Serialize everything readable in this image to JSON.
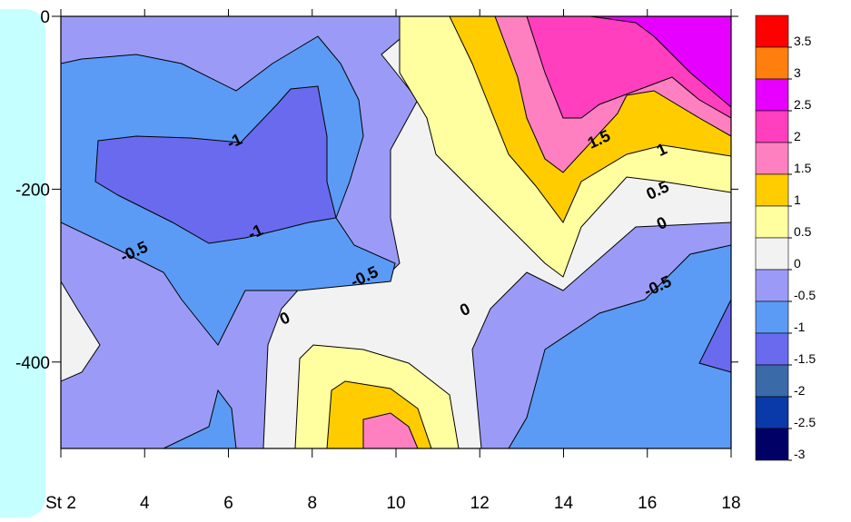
{
  "chart_data": {
    "type": "heatmap",
    "title": "",
    "xlabel": "",
    "ylabel": "",
    "x_ticks": [
      "St 2",
      "4",
      "6",
      "8",
      "10",
      "12",
      "14",
      "16",
      "18"
    ],
    "y_ticks": [
      "0",
      "-200",
      "-400"
    ],
    "xlim": [
      2,
      18
    ],
    "ylim": [
      -500,
      0
    ],
    "colorbar": {
      "levels": [
        3.5,
        3,
        2.5,
        2,
        1.5,
        1,
        0.5,
        0,
        -0.5,
        -1,
        -1.5,
        -2,
        -2.5,
        -3
      ],
      "labels": [
        "3.5",
        "3",
        "2.5",
        "2",
        "1.5",
        "1",
        "0.5",
        "0",
        "-0.5",
        "-1",
        "-1.5",
        "-2",
        "-2.5",
        "-3"
      ],
      "colors": [
        "#ff0000",
        "#ff7f0e",
        "#e600ff",
        "#ff3fbe",
        "#ff80c0",
        "#ffcc00",
        "#ffffa0",
        "#f2f2f2",
        "#9b9bf7",
        "#5b9bf5",
        "#6a6aef",
        "#3a6aa8",
        "#0a3aaa",
        "#000066"
      ]
    },
    "contour_labels": [
      {
        "text": "-1",
        "x": 6.2,
        "y": -150
      },
      {
        "text": "-1",
        "x": 6.7,
        "y": -255
      },
      {
        "text": "-0.5",
        "x": 3.8,
        "y": -278
      },
      {
        "text": "-0.5",
        "x": 9.3,
        "y": -307
      },
      {
        "text": "0",
        "x": 7.4,
        "y": -355
      },
      {
        "text": "0",
        "x": 11.7,
        "y": -345
      },
      {
        "text": "1.5",
        "x": 14.9,
        "y": -148
      },
      {
        "text": "1",
        "x": 16.4,
        "y": -160
      },
      {
        "text": "0.5",
        "x": 16.3,
        "y": -207
      },
      {
        "text": "0",
        "x": 16.4,
        "y": -245
      },
      {
        "text": "-0.5",
        "x": 16.3,
        "y": -318
      }
    ]
  }
}
